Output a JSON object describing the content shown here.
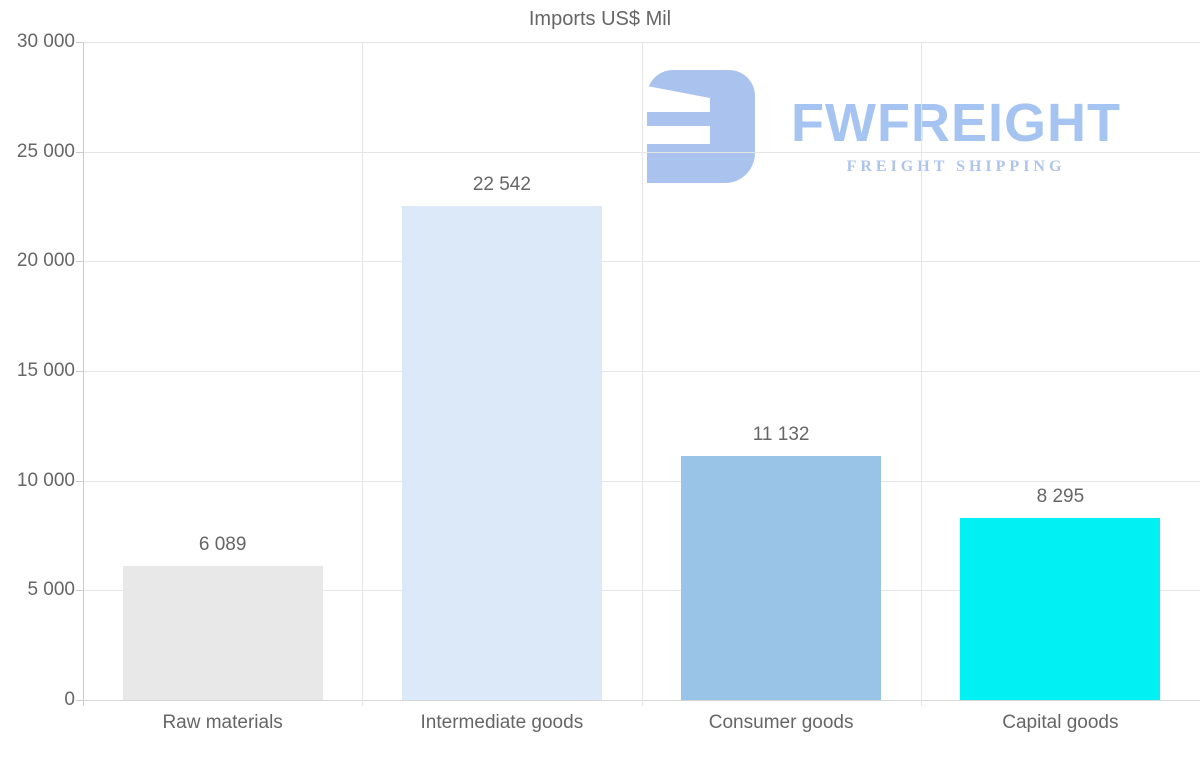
{
  "title": "Imports US$ Mil",
  "watermark": {
    "brand": "FWFREIGHT",
    "tagline": "FREIGHT SHIPPING",
    "brand_color": "#a6c4f1",
    "tagline_color": "#aec4ea",
    "icon": "fwfreight-rounded-f-mark",
    "icon_color": "#a9c3ee"
  },
  "chart_data": {
    "type": "bar",
    "title": "Imports US$ Mil",
    "categories": [
      "Raw materials",
      "Intermediate goods",
      "Consumer goods",
      "Capital goods"
    ],
    "values": [
      6089,
      22542,
      11132,
      8295
    ],
    "value_labels": [
      "6 089",
      "22 542",
      "11 132",
      "8 295"
    ],
    "bar_colors": [
      "#e8e8e8",
      "#dbe9f9",
      "#99c4e8",
      "#00f0f4"
    ],
    "xlabel": "",
    "ylabel": "",
    "ylim": [
      0,
      30000
    ],
    "ytick_step": 5000,
    "ytick_labels": [
      "0",
      "5 000",
      "10 000",
      "15 000",
      "20 000",
      "25 000",
      "30 000"
    ],
    "grid": "horizontal gridlines + vertical category separators",
    "legend": "none",
    "text_color": "#666666",
    "gridline_color": "#e6e6e6",
    "axis_color": "#cccccc"
  }
}
